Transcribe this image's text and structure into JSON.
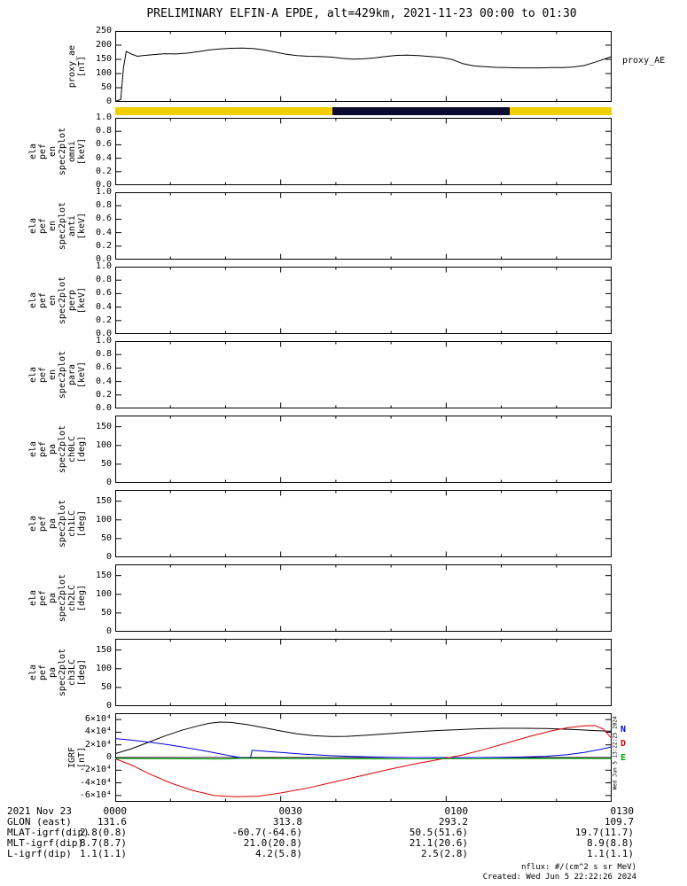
{
  "title": "PRELIMINARY ELFIN-A EPDE, alt=429km, 2021-11-23 00:00 to 01:30",
  "right_labels": {
    "proxy": "proxy_AE"
  },
  "side_note": "Wed Jun 5 13:22:25 2024",
  "footer": {
    "nflux": "nflux: #/(cm^2 s sr MeV)",
    "created": "Created: Wed Jun 5 22:22:26 2024"
  },
  "bottom_table": {
    "rows": [
      {
        "label": "2021 Nov 23",
        "values": [
          "0000",
          "0030",
          "0100",
          "0130"
        ]
      },
      {
        "label": "GLON (east)",
        "values": [
          "131.6",
          "313.8",
          "293.2",
          "109.7"
        ]
      },
      {
        "label": "MLAT-igrf(dip)",
        "values": [
          "2.8(0.8)",
          "-60.7(-64.6)",
          "50.5(51.6)",
          "19.7(11.7)"
        ]
      },
      {
        "label": "MLT-igrf(dip)",
        "values": [
          "8.7(8.7)",
          "21.0(20.8)",
          "21.1(20.6)",
          "8.9(8.8)"
        ]
      },
      {
        "label": "L-igrf(dip)",
        "values": [
          "1.1(1.1)",
          "4.2(5.8)",
          "2.5(2.8)",
          "1.1(1.1)"
        ]
      }
    ]
  },
  "chart_data": [
    {
      "id": "proxy_ae",
      "type": "line",
      "ylabel_lines": [
        "proxy_ae",
        "[nT]"
      ],
      "right_label": "proxy_AE",
      "ylim": [
        0,
        250
      ],
      "yticks": [
        0,
        50,
        100,
        150,
        200,
        250
      ],
      "ytick_labels": [
        "0",
        "50",
        "100",
        "150",
        "200",
        "250"
      ],
      "xlim_minutes": [
        0,
        90
      ],
      "xtick_labels": [
        "0000",
        "0030",
        "0100",
        "0130"
      ],
      "series": [
        {
          "name": "proxy_AE",
          "color": "#000000",
          "x": [
            0,
            1,
            1.5,
            2,
            3,
            4,
            5,
            7,
            9,
            11,
            13,
            15,
            17,
            19,
            21,
            23,
            25,
            27,
            29,
            31,
            33,
            35,
            37,
            39,
            41,
            43,
            45,
            47,
            49,
            51,
            53,
            55,
            57,
            59,
            61,
            63,
            65,
            67,
            69,
            71,
            73,
            75,
            77,
            79,
            81,
            83,
            85,
            87,
            89,
            90
          ],
          "y": [
            2,
            8,
            120,
            178,
            168,
            161,
            163,
            167,
            170,
            169,
            172,
            177,
            183,
            187,
            189,
            190,
            188,
            183,
            176,
            168,
            163,
            161,
            160,
            158,
            154,
            151,
            152,
            155,
            160,
            164,
            165,
            163,
            160,
            157,
            150,
            135,
            127,
            124,
            122,
            121,
            120,
            120,
            120,
            121,
            121,
            123,
            128,
            140,
            153,
            160
          ]
        }
      ]
    },
    {
      "id": "orbit_bar",
      "type": "strip",
      "segments": [
        {
          "color": "#f2cf00",
          "start_frac": 0.0,
          "end_frac": 0.437
        },
        {
          "color": "#0b0b30",
          "start_frac": 0.437,
          "end_frac": 0.795
        },
        {
          "color": "#f2cf00",
          "start_frac": 0.795,
          "end_frac": 1.0
        }
      ]
    },
    {
      "id": "en_omni",
      "type": "spectrogram-empty",
      "ylabel_lines": [
        "ela",
        "pef",
        "en",
        "spec2plot",
        "omni",
        "[keV]"
      ],
      "ylim": [
        0,
        1
      ],
      "yticks": [
        0,
        0.2,
        0.4,
        0.6,
        0.8,
        1
      ],
      "ytick_labels": [
        "0.0",
        "0.2",
        "0.4",
        "0.6",
        "0.8",
        "1.0"
      ],
      "xlim_minutes": [
        0,
        90
      ],
      "series": []
    },
    {
      "id": "en_anti",
      "type": "spectrogram-empty",
      "ylabel_lines": [
        "ela",
        "pef",
        "en",
        "spec2plot",
        "anti",
        "[keV]"
      ],
      "ylim": [
        0,
        1
      ],
      "yticks": [
        0,
        0.2,
        0.4,
        0.6,
        0.8,
        1
      ],
      "ytick_labels": [
        "0.0",
        "0.2",
        "0.4",
        "0.6",
        "0.8",
        "1.0"
      ],
      "xlim_minutes": [
        0,
        90
      ],
      "series": []
    },
    {
      "id": "en_perp",
      "type": "spectrogram-empty",
      "ylabel_lines": [
        "ela",
        "pef",
        "en",
        "spec2plot",
        "perp",
        "[keV]"
      ],
      "ylim": [
        0,
        1
      ],
      "yticks": [
        0,
        0.2,
        0.4,
        0.6,
        0.8,
        1
      ],
      "ytick_labels": [
        "0.0",
        "0.2",
        "0.4",
        "0.6",
        "0.8",
        "1.0"
      ],
      "xlim_minutes": [
        0,
        90
      ],
      "series": []
    },
    {
      "id": "en_para",
      "type": "spectrogram-empty",
      "ylabel_lines": [
        "ela",
        "pef",
        "en",
        "spec2plot",
        "para",
        "[keV]"
      ],
      "ylim": [
        0,
        1
      ],
      "yticks": [
        0,
        0.2,
        0.4,
        0.6,
        0.8,
        1
      ],
      "ytick_labels": [
        "0.0",
        "0.2",
        "0.4",
        "0.6",
        "0.8",
        "1.0"
      ],
      "xlim_minutes": [
        0,
        90
      ],
      "series": []
    },
    {
      "id": "pa_ch0lc",
      "type": "spectrogram-empty",
      "ylabel_lines": [
        "ela",
        "pef",
        "pa",
        "spec2plot",
        "ch0LC",
        "[deg]"
      ],
      "ylim": [
        0,
        180
      ],
      "yticks": [
        0,
        50,
        100,
        150
      ],
      "ytick_labels": [
        "0",
        "50",
        "100",
        "150"
      ],
      "xlim_minutes": [
        0,
        90
      ],
      "series": []
    },
    {
      "id": "pa_ch1lc",
      "type": "spectrogram-empty",
      "ylabel_lines": [
        "ela",
        "pef",
        "pa",
        "spec2plot",
        "ch1LC",
        "[deg]"
      ],
      "ylim": [
        0,
        180
      ],
      "yticks": [
        0,
        50,
        100,
        150
      ],
      "ytick_labels": [
        "0",
        "50",
        "100",
        "150"
      ],
      "xlim_minutes": [
        0,
        90
      ],
      "series": []
    },
    {
      "id": "pa_ch2lc",
      "type": "spectrogram-empty",
      "ylabel_lines": [
        "ela",
        "pef",
        "pa",
        "spec2plot",
        "ch2LC",
        "[deg]"
      ],
      "ylim": [
        0,
        180
      ],
      "yticks": [
        0,
        50,
        100,
        150
      ],
      "ytick_labels": [
        "0",
        "50",
        "100",
        "150"
      ],
      "xlim_minutes": [
        0,
        90
      ],
      "series": []
    },
    {
      "id": "pa_ch3lc",
      "type": "spectrogram-empty",
      "ylabel_lines": [
        "ela",
        "pef",
        "pa",
        "spec2plot",
        "ch3LC",
        "[deg]"
      ],
      "ylim": [
        0,
        180
      ],
      "yticks": [
        0,
        50,
        100,
        150
      ],
      "ytick_labels": [
        "0",
        "50",
        "100",
        "150"
      ],
      "xlim_minutes": [
        0,
        90
      ],
      "series": []
    },
    {
      "id": "igrf",
      "type": "line",
      "ylabel_lines": [
        "IGRF",
        "[nT]"
      ],
      "ylim": [
        -70000,
        70000
      ],
      "yticks": [
        -60000,
        -40000,
        -20000,
        0,
        20000,
        40000,
        60000
      ],
      "ytick_labels": [
        "-6×10⁴",
        "-4×10⁴",
        "-2×10⁴",
        "0",
        "2×10⁴",
        "4×10⁴",
        "6×10⁴"
      ],
      "zero_line": true,
      "xlim_minutes": [
        0,
        90
      ],
      "xtick_labels": [
        "0000",
        "0030",
        "0100",
        "0130"
      ],
      "legend": [
        {
          "label": "N",
          "color": "#0000dd"
        },
        {
          "label": "D",
          "color": "#dd0000"
        },
        {
          "label": "E",
          "color": "#00aa00"
        }
      ],
      "series": [
        {
          "name": "Bt",
          "color": "#000000",
          "x": [
            0,
            3,
            6,
            9,
            12,
            15,
            17,
            19,
            21,
            24,
            27,
            30,
            33,
            36,
            39,
            42,
            46,
            50,
            54,
            58,
            62,
            66,
            70,
            74,
            78,
            81,
            84,
            87,
            90
          ],
          "y": [
            6000,
            14000,
            24000,
            34000,
            43000,
            50000,
            54000,
            56000,
            55500,
            52000,
            47000,
            42000,
            37500,
            34500,
            33200,
            33500,
            35500,
            38000,
            40500,
            42500,
            44000,
            45500,
            46200,
            46200,
            45800,
            45000,
            44000,
            42500,
            41500
          ]
        },
        {
          "name": "N",
          "color": "#0000dd",
          "x": [
            0,
            3,
            6,
            9,
            12,
            15,
            18,
            21,
            23,
            24.5,
            24.8,
            27,
            30,
            34,
            38,
            42,
            46,
            50,
            54,
            58,
            62,
            66,
            70,
            74,
            78,
            82,
            85,
            88,
            90
          ],
          "y": [
            30000,
            27500,
            24500,
            21000,
            17000,
            12500,
            7500,
            2500,
            -500,
            -1500,
            11500,
            10000,
            8000,
            5500,
            3500,
            2000,
            1000,
            300,
            0,
            -200,
            -200,
            0,
            300,
            800,
            2000,
            4500,
            8000,
            13000,
            17000
          ]
        },
        {
          "name": "D",
          "color": "#dd0000",
          "x": [
            0,
            3,
            6,
            10,
            14,
            18,
            22,
            26,
            30,
            35,
            40,
            45,
            50,
            55,
            60,
            63,
            67,
            71,
            75,
            79,
            82,
            85,
            87,
            88.5,
            90
          ],
          "y": [
            -2000,
            -12000,
            -25000,
            -40000,
            -52000,
            -60000,
            -62000,
            -61000,
            -56000,
            -48000,
            -38000,
            -28000,
            -18000,
            -9000,
            -1000,
            4000,
            13000,
            23000,
            33000,
            42000,
            47000,
            50000,
            50500,
            45000,
            30000
          ]
        },
        {
          "name": "E",
          "color": "#00aa00",
          "x": [
            0,
            10,
            20,
            23,
            30,
            40,
            50,
            60,
            70,
            80,
            90
          ],
          "y": [
            -1500,
            -2000,
            -2500,
            -1200,
            -1500,
            -2000,
            -2300,
            -2000,
            -1700,
            -1500,
            -1800
          ]
        }
      ]
    }
  ]
}
